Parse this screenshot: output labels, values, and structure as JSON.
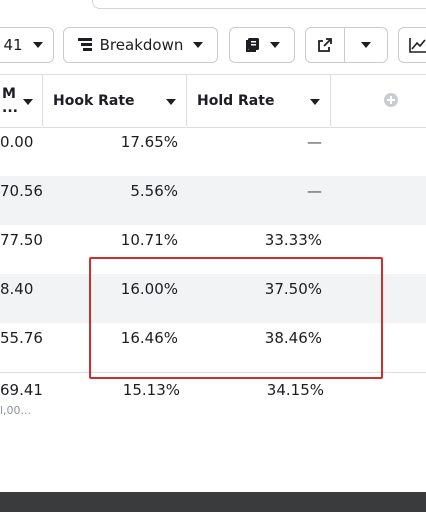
{
  "toolbar": {
    "columns_partial": "41",
    "breakdown_label": "Breakdown"
  },
  "table": {
    "headers": {
      "partial_col_top": "M",
      "partial_col_bottom": "...",
      "hook_rate": "Hook Rate",
      "hold_rate": "Hold Rate"
    },
    "rows": [
      {
        "partial": "0.00",
        "hook_rate": "17.65%",
        "hold_rate": "—"
      },
      {
        "partial": "70.56",
        "hook_rate": "5.56%",
        "hold_rate": "—"
      },
      {
        "partial": "77.50",
        "hook_rate": "10.71%",
        "hold_rate": "33.33%"
      },
      {
        "partial": "8.40",
        "hook_rate": "16.00%",
        "hold_rate": "37.50%"
      },
      {
        "partial": "55.76",
        "hook_rate": "16.46%",
        "hold_rate": "38.46%"
      }
    ],
    "totals": {
      "partial": "69.41",
      "partial_sub": "l,00...",
      "hook_rate": "15.13%",
      "hold_rate": "34.15%"
    }
  },
  "colors": {
    "highlight": "#d02d2d",
    "alt_row": "#f2f3f5",
    "border": "#dadde1"
  },
  "icons": [
    "chevron-down-icon",
    "breakdown-icon",
    "columns-icon",
    "export-icon",
    "chart-icon",
    "add-column-icon"
  ]
}
